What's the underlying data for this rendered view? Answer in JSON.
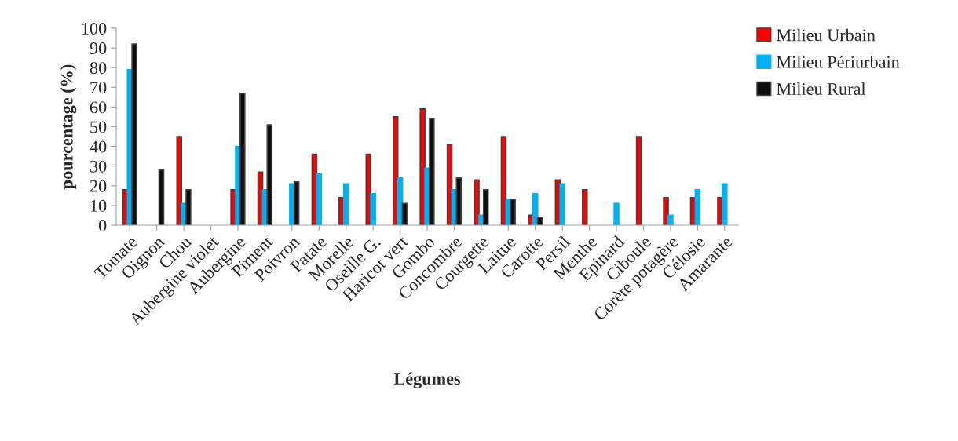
{
  "chart_data": {
    "type": "bar",
    "xlabel": "Légumes",
    "ylabel": "pourcentage (%)",
    "categories": [
      "Tomate",
      "Oignon",
      "Chou",
      "Aubergine violet",
      "Aubergine",
      "Piment",
      "Poivron",
      "Patate",
      "Morelle",
      "Oseille G.",
      "Haricot vert",
      "Gombo",
      "Concombre",
      "Courgette",
      "Laitue",
      "Carotte",
      "Persil",
      "Menthe",
      "Epinard",
      "Ciboule",
      "Corète potagère",
      "Célosie",
      "Amarante"
    ],
    "series": [
      {
        "name": "Milieu Urbain",
        "color": "#ff0000",
        "values": [
          18,
          0,
          45,
          0,
          18,
          27,
          0,
          36,
          14,
          36,
          55,
          59,
          41,
          23,
          45,
          5,
          23,
          18,
          0,
          45,
          14,
          14,
          14
        ]
      },
      {
        "name": "Milieu Périurbain",
        "color": "#00b0f0",
        "values": [
          79,
          0,
          11,
          0,
          40,
          18,
          21,
          26,
          21,
          16,
          24,
          29,
          18,
          5,
          13,
          16,
          21,
          0,
          11,
          0,
          5,
          18,
          21
        ]
      },
      {
        "name": "Milieu Rural",
        "color": "#0d0d0d",
        "values": [
          92,
          28,
          18,
          0,
          67,
          51,
          22,
          0,
          0,
          0,
          11,
          54,
          24,
          18,
          13,
          4,
          0,
          0,
          0,
          0,
          0,
          0,
          0
        ]
      }
    ],
    "ylim": [
      0,
      100
    ],
    "yticks": [
      0,
      10,
      20,
      30,
      40,
      50,
      60,
      70,
      80,
      90,
      100
    ],
    "grid": false,
    "legend": "top right"
  }
}
